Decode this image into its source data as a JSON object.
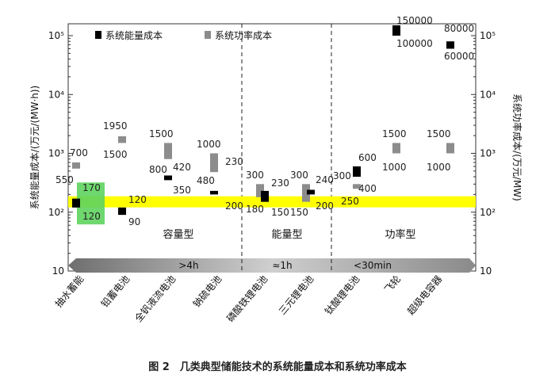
{
  "caption": "图 2　几类典型储能技术的系统能量成本和系统功率成本",
  "colors": {
    "energy": "#000000",
    "power": "#8c8c8c",
    "highlight_band": "#ffff00",
    "highlight_box": "#5ed35e"
  },
  "chart_data": {
    "type": "range-bar",
    "categories": [
      "抽水蓄能",
      "铅蓄电池",
      "全钒液流电池",
      "钠硫电池",
      "磷酸铁锂电池",
      "三元锂电池",
      "钛酸锂电池",
      "飞轮",
      "超级电容器"
    ],
    "ylabel_left": "系统能量成本/(万元/(MW·h))",
    "ylabel_right": "系统功率成本/(万元/MW)",
    "yscale": "log",
    "ylim": [
      10,
      200000
    ],
    "yticks": [
      "10",
      "10²",
      "10³",
      "10⁴",
      "10⁵"
    ],
    "series": [
      {
        "name": "系统能量成本",
        "ranges": [
          [
            120,
            170
          ],
          [
            90,
            120
          ],
          [
            350,
            420
          ],
          [
            200,
            230
          ],
          [
            150,
            230
          ],
          [
            200,
            240
          ],
          [
            400,
            600
          ],
          [],
          []
        ]
      },
      {
        "name": "系统功率成本",
        "ranges": [
          [
            550,
            700
          ],
          [
            1500,
            1950
          ],
          [
            800,
            1500
          ],
          [
            480,
            1000
          ],
          [
            180,
            300
          ],
          [
            150,
            300
          ],
          [
            250,
            300
          ],
          [
            1000,
            1500
          ],
          [
            1000,
            1500
          ]
        ]
      }
    ],
    "extra_energy_boxes": [
      {
        "category": "飞轮",
        "low": 100000,
        "high": 150000
      },
      {
        "category": "超级电容器",
        "low": 60000,
        "high": 80000
      }
    ],
    "value_labels": [
      {
        "text": "700"
      },
      {
        "text": "550"
      },
      {
        "text": "170"
      },
      {
        "text": "120"
      },
      {
        "text": "1950"
      },
      {
        "text": "1500"
      },
      {
        "text": "120"
      },
      {
        "text": "90"
      },
      {
        "text": "1500"
      },
      {
        "text": "800"
      },
      {
        "text": "420"
      },
      {
        "text": "350"
      },
      {
        "text": "1000"
      },
      {
        "text": "480"
      },
      {
        "text": "230"
      },
      {
        "text": "200"
      },
      {
        "text": "300"
      },
      {
        "text": "230"
      },
      {
        "text": "180"
      },
      {
        "text": "150"
      },
      {
        "text": "300"
      },
      {
        "text": "240"
      },
      {
        "text": "150"
      },
      {
        "text": "200"
      },
      {
        "text": "300"
      },
      {
        "text": "600"
      },
      {
        "text": "400"
      },
      {
        "text": "250"
      },
      {
        "text": "1500"
      },
      {
        "text": "1000"
      },
      {
        "text": "150000"
      },
      {
        "text": "100000"
      },
      {
        "text": "1500"
      },
      {
        "text": "1000"
      },
      {
        "text": "80000"
      },
      {
        "text": "60000"
      }
    ],
    "legend": [
      "系统能量成本",
      "系统功率成本"
    ],
    "groups": [
      "容量型",
      "能量型",
      "功率型"
    ],
    "duration_labels": [
      ">4h",
      "≈1h",
      "<30min"
    ],
    "highlight_value": 150
  }
}
